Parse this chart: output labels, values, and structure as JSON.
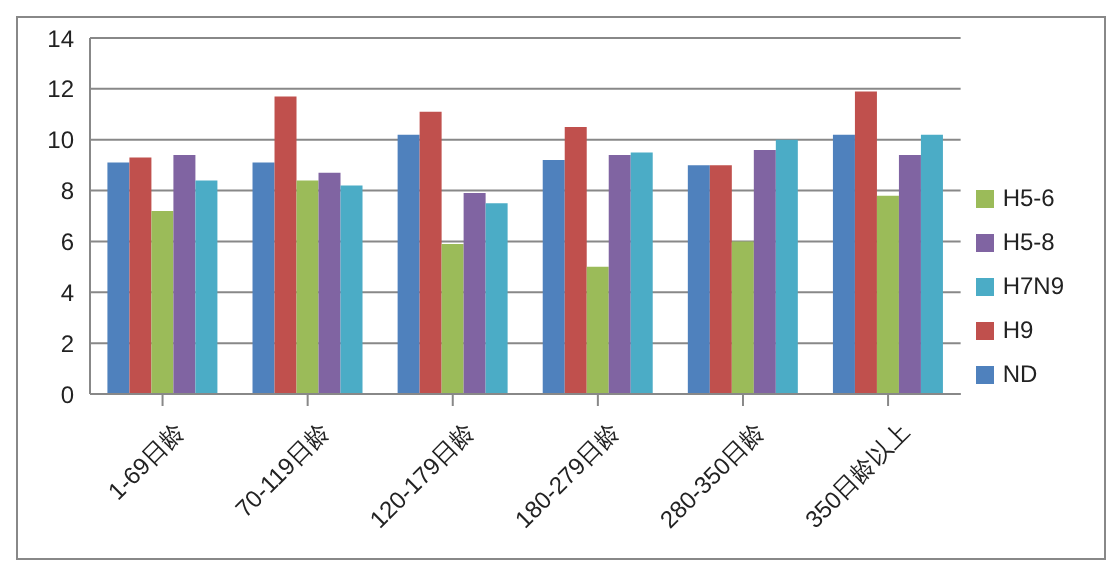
{
  "chart_data": {
    "type": "bar",
    "categories": [
      "1-69日龄",
      "70-119日龄",
      "120-179日龄",
      "180-279日龄",
      "280-350日龄",
      "350日龄以上"
    ],
    "series": [
      {
        "name": "ND",
        "color": "#4f81bd",
        "values": [
          9.1,
          9.1,
          10.2,
          9.2,
          9.0,
          10.2
        ]
      },
      {
        "name": "H9",
        "color": "#c0504d",
        "values": [
          9.3,
          11.7,
          11.1,
          10.5,
          9.0,
          11.9
        ]
      },
      {
        "name": "H5-6",
        "color": "#9bbb59",
        "values": [
          7.2,
          8.4,
          5.9,
          5.0,
          6.0,
          7.8
        ]
      },
      {
        "name": "H5-8",
        "color": "#8064a2",
        "values": [
          9.4,
          8.7,
          7.9,
          9.4,
          9.6,
          9.4
        ]
      },
      {
        "name": "H7N9",
        "color": "#4bacc6",
        "values": [
          8.4,
          8.2,
          7.5,
          9.5,
          10.0,
          10.2
        ]
      }
    ],
    "ylim": [
      0,
      14
    ],
    "yticks": [
      0,
      2,
      4,
      6,
      8,
      10,
      12,
      14
    ],
    "grid": "y",
    "legend": "right"
  }
}
